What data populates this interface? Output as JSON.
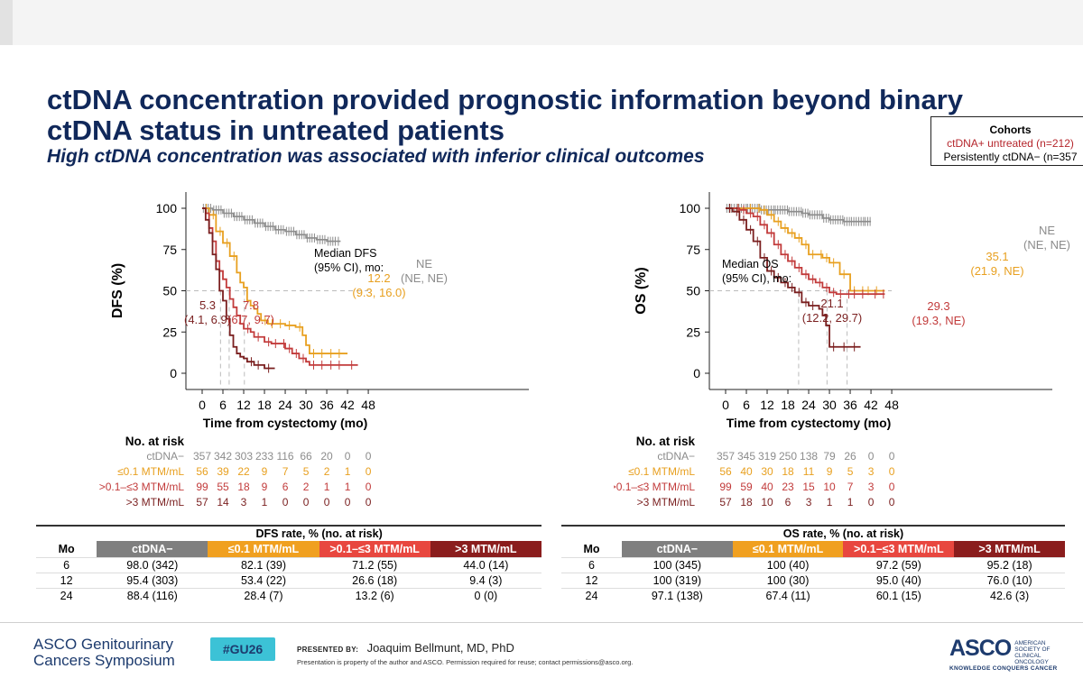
{
  "title": "ctDNA concentration provided prognostic information beyond binary ctDNA status in untreated patients",
  "subtitle": "High ctDNA concentration was associated with inferior clinical outcomes",
  "cohorts_box": {
    "title": "Cohorts",
    "line1": "ctDNA+ untreated (n=212)",
    "line2": "Persistently ctDNA− (n=357"
  },
  "colors": {
    "neg": "#8c8c8c",
    "low": "#e8a020",
    "mid": "#c23b3b",
    "high": "#7a1f1f"
  },
  "chart_data": [
    {
      "type": "line",
      "title": "DFS",
      "ylabel": "DFS (%)",
      "xlabel": "Time from cystectomy (mo)",
      "xlim": [
        0,
        48
      ],
      "ylim": [
        0,
        100
      ],
      "xticks": [
        0,
        6,
        12,
        18,
        24,
        30,
        36,
        42,
        48
      ],
      "yticks": [
        0,
        25,
        50,
        75,
        100
      ],
      "median_label": [
        "Median DFS",
        "(95% CI), mo:"
      ],
      "series": [
        {
          "name": "ctDNA−",
          "color": "#8c8c8c",
          "median": [
            "NE",
            "(NE, NE)"
          ],
          "points": [
            [
              0,
              100
            ],
            [
              3,
              99
            ],
            [
              6,
              97
            ],
            [
              9,
              95
            ],
            [
              12,
              93
            ],
            [
              15,
              91
            ],
            [
              18,
              89
            ],
            [
              21,
              87
            ],
            [
              24,
              86
            ],
            [
              27,
              84
            ],
            [
              30,
              82
            ],
            [
              33,
              81
            ],
            [
              36,
              80
            ],
            [
              39,
              80
            ],
            [
              40,
              80
            ]
          ]
        },
        {
          "name": "≤0.1 MTM/mL",
          "color": "#e8a020",
          "median": [
            "12.2",
            "(9.3, 16.0)"
          ],
          "points": [
            [
              0,
              100
            ],
            [
              2,
              96
            ],
            [
              4,
              86
            ],
            [
              6,
              79
            ],
            [
              8,
              71
            ],
            [
              10,
              61
            ],
            [
              11,
              55
            ],
            [
              12,
              52
            ],
            [
              13,
              44
            ],
            [
              14,
              41
            ],
            [
              15,
              39
            ],
            [
              16,
              36
            ],
            [
              17,
              32
            ],
            [
              19,
              30
            ],
            [
              24,
              29
            ],
            [
              27,
              28
            ],
            [
              29,
              23
            ],
            [
              30,
              17
            ],
            [
              31,
              12
            ],
            [
              36,
              12
            ],
            [
              41,
              12
            ],
            [
              42,
              12
            ]
          ]
        },
        {
          "name": ">0.1–≤3 MTM/mL",
          "color": "#c23b3b",
          "median": [
            "7.8",
            "(6.7, 9.7)"
          ],
          "points": [
            [
              0,
              100
            ],
            [
              1,
              97
            ],
            [
              2,
              88
            ],
            [
              3,
              80
            ],
            [
              4,
              68
            ],
            [
              5,
              62
            ],
            [
              6,
              57
            ],
            [
              7,
              52
            ],
            [
              8,
              45
            ],
            [
              9,
              40
            ],
            [
              10,
              35
            ],
            [
              11,
              30
            ],
            [
              12,
              27
            ],
            [
              14,
              25
            ],
            [
              15,
              22
            ],
            [
              18,
              19
            ],
            [
              20,
              18
            ],
            [
              24,
              15
            ],
            [
              26,
              12
            ],
            [
              28,
              9
            ],
            [
              30,
              7
            ],
            [
              31,
              5
            ],
            [
              36,
              5
            ],
            [
              42,
              5
            ],
            [
              44,
              5
            ],
            [
              45,
              5
            ]
          ]
        },
        {
          "name": ">3 MTM/mL",
          "color": "#7a1f1f",
          "median": [
            "5.3",
            "(4.1, 6.9)"
          ],
          "points": [
            [
              0,
              100
            ],
            [
              1,
              93
            ],
            [
              2,
              85
            ],
            [
              3,
              72
            ],
            [
              4,
              63
            ],
            [
              5,
              50
            ],
            [
              6,
              44
            ],
            [
              7,
              33
            ],
            [
              8,
              23
            ],
            [
              9,
              16
            ],
            [
              10,
              12
            ],
            [
              11,
              10
            ],
            [
              12,
              9
            ],
            [
              13,
              7
            ],
            [
              15,
              5
            ],
            [
              18,
              3
            ],
            [
              21,
              3
            ]
          ]
        }
      ],
      "risk_table": {
        "header": "No. at risk",
        "rows": [
          {
            "label": "ctDNA−",
            "values": [
              "357",
              "342",
              "303",
              "233",
              "116",
              "66",
              "20",
              "0",
              "0"
            ]
          },
          {
            "label": "≤0.1 MTM/mL",
            "values": [
              "56",
              "39",
              "22",
              "9",
              "7",
              "5",
              "2",
              "1",
              "0"
            ]
          },
          {
            "label": ">0.1–≤3 MTM/mL",
            "values": [
              "99",
              "55",
              "18",
              "9",
              "6",
              "2",
              "1",
              "1",
              "0"
            ]
          },
          {
            "label": ">3 MTM/mL",
            "values": [
              "57",
              "14",
              "3",
              "1",
              "0",
              "0",
              "0",
              "0",
              "0"
            ]
          }
        ]
      }
    },
    {
      "type": "line",
      "title": "OS",
      "ylabel": "OS (%)",
      "xlabel": "Time from cystectomy (mo)",
      "xlim": [
        0,
        48
      ],
      "ylim": [
        0,
        100
      ],
      "xticks": [
        0,
        6,
        12,
        18,
        24,
        30,
        36,
        42,
        48
      ],
      "yticks": [
        0,
        25,
        50,
        75,
        100
      ],
      "median_label": [
        "Median OS",
        "(95% CI), mo:"
      ],
      "series": [
        {
          "name": "ctDNA−",
          "color": "#8c8c8c",
          "median": [
            "NE",
            "(NE, NE)"
          ],
          "points": [
            [
              0,
              100
            ],
            [
              6,
              100
            ],
            [
              10,
              99
            ],
            [
              14,
              99
            ],
            [
              18,
              98
            ],
            [
              22,
              97
            ],
            [
              24,
              96
            ],
            [
              28,
              94
            ],
            [
              30,
              93
            ],
            [
              34,
              92
            ],
            [
              36,
              92
            ],
            [
              40,
              92
            ],
            [
              42,
              92
            ]
          ]
        },
        {
          "name": "≤0.1 MTM/mL",
          "color": "#e8a020",
          "median": [
            "35.1",
            "(21.9, NE)"
          ],
          "points": [
            [
              0,
              100
            ],
            [
              6,
              100
            ],
            [
              10,
              99
            ],
            [
              12,
              96
            ],
            [
              14,
              92
            ],
            [
              16,
              88
            ],
            [
              18,
              85
            ],
            [
              20,
              82
            ],
            [
              22,
              78
            ],
            [
              24,
              72
            ],
            [
              28,
              70
            ],
            [
              30,
              67
            ],
            [
              33,
              60
            ],
            [
              35,
              60
            ],
            [
              36,
              50
            ],
            [
              40,
              50
            ],
            [
              45,
              50
            ],
            [
              46,
              50
            ]
          ]
        },
        {
          "name": ">0.1–≤3 MTM/mL",
          "color": "#c23b3b",
          "median": [
            "29.3",
            "(19.3, NE)"
          ],
          "points": [
            [
              0,
              100
            ],
            [
              4,
              99
            ],
            [
              6,
              97
            ],
            [
              8,
              95
            ],
            [
              10,
              90
            ],
            [
              12,
              85
            ],
            [
              14,
              78
            ],
            [
              16,
              72
            ],
            [
              18,
              68
            ],
            [
              20,
              64
            ],
            [
              22,
              60
            ],
            [
              24,
              57
            ],
            [
              26,
              55
            ],
            [
              28,
              52
            ],
            [
              30,
              49
            ],
            [
              32,
              48
            ],
            [
              36,
              48
            ],
            [
              42,
              48
            ],
            [
              46,
              48
            ]
          ]
        },
        {
          "name": ">3 MTM/mL",
          "color": "#7a1f1f",
          "median": [
            "21.1",
            "(12.2, 29.7)"
          ],
          "points": [
            [
              0,
              100
            ],
            [
              2,
              98
            ],
            [
              4,
              93
            ],
            [
              6,
              87
            ],
            [
              8,
              80
            ],
            [
              10,
              70
            ],
            [
              12,
              62
            ],
            [
              14,
              58
            ],
            [
              16,
              55
            ],
            [
              18,
              52
            ],
            [
              20,
              49
            ],
            [
              22,
              43
            ],
            [
              24,
              41
            ],
            [
              26,
              41
            ],
            [
              27,
              39
            ],
            [
              28,
              35
            ],
            [
              29,
              29
            ],
            [
              30,
              16
            ],
            [
              33,
              16
            ],
            [
              36,
              16
            ],
            [
              39,
              16
            ]
          ]
        }
      ],
      "risk_table": {
        "header": "No. at risk",
        "rows": [
          {
            "label": "ctDNA−",
            "values": [
              "357",
              "345",
              "319",
              "250",
              "138",
              "79",
              "26",
              "0",
              "0"
            ]
          },
          {
            "label": "≤0.1 MTM/mL",
            "values": [
              "56",
              "40",
              "30",
              "18",
              "11",
              "9",
              "5",
              "3",
              "0"
            ]
          },
          {
            "label": ">0.1–≤3 MTM/mL",
            "values": [
              "99",
              "59",
              "40",
              "23",
              "15",
              "10",
              "7",
              "3",
              "0"
            ]
          },
          {
            "label": ">3 MTM/mL",
            "values": [
              "57",
              "18",
              "10",
              "6",
              "3",
              "1",
              "1",
              "0",
              "0"
            ]
          }
        ]
      }
    },
    {
      "type": "table",
      "caption": "DFS rate, % (no. at risk)",
      "columns": [
        "Mo",
        "ctDNA−",
        "≤0.1 MTM/mL",
        ">0.1–≤3 MTM/mL",
        ">3 MTM/mL"
      ],
      "rows": [
        [
          "6",
          "98.0 (342)",
          "82.1 (39)",
          "71.2 (55)",
          "44.0 (14)"
        ],
        [
          "12",
          "95.4 (303)",
          "53.4 (22)",
          "26.6 (18)",
          "9.4 (3)"
        ],
        [
          "24",
          "88.4 (116)",
          "28.4 (7)",
          "13.2 (6)",
          "0 (0)"
        ]
      ]
    },
    {
      "type": "table",
      "caption": "OS rate, % (no. at risk)",
      "columns": [
        "Mo",
        "ctDNA−",
        "≤0.1 MTM/mL",
        ">0.1–≤3 MTM/mL",
        ">3 MTM/mL"
      ],
      "rows": [
        [
          "6",
          "100 (345)",
          "100 (40)",
          "97.2 (59)",
          "95.2 (18)"
        ],
        [
          "12",
          "100 (319)",
          "100 (30)",
          "95.0 (40)",
          "76.0 (10)"
        ],
        [
          "24",
          "97.1 (138)",
          "67.4 (11)",
          "60.1 (15)",
          "42.6 (3)"
        ]
      ]
    }
  ],
  "footer": {
    "meeting_line1": "ASCO Genitourinary",
    "meeting_line2": "Cancers Symposium",
    "hashtag": "#GU26",
    "presented_by_label": "PRESENTED BY:",
    "presenter": "Joaquim Bellmunt, MD, PhD",
    "note": "Presentation is property of the author and ASCO. Permission required for reuse; contact permissions@asco.org.",
    "logo": "ASCO",
    "logo_sub": "AMERICAN SOCIETY OF CLINICAL ONCOLOGY",
    "tagline": "KNOWLEDGE CONQUERS CANCER"
  }
}
